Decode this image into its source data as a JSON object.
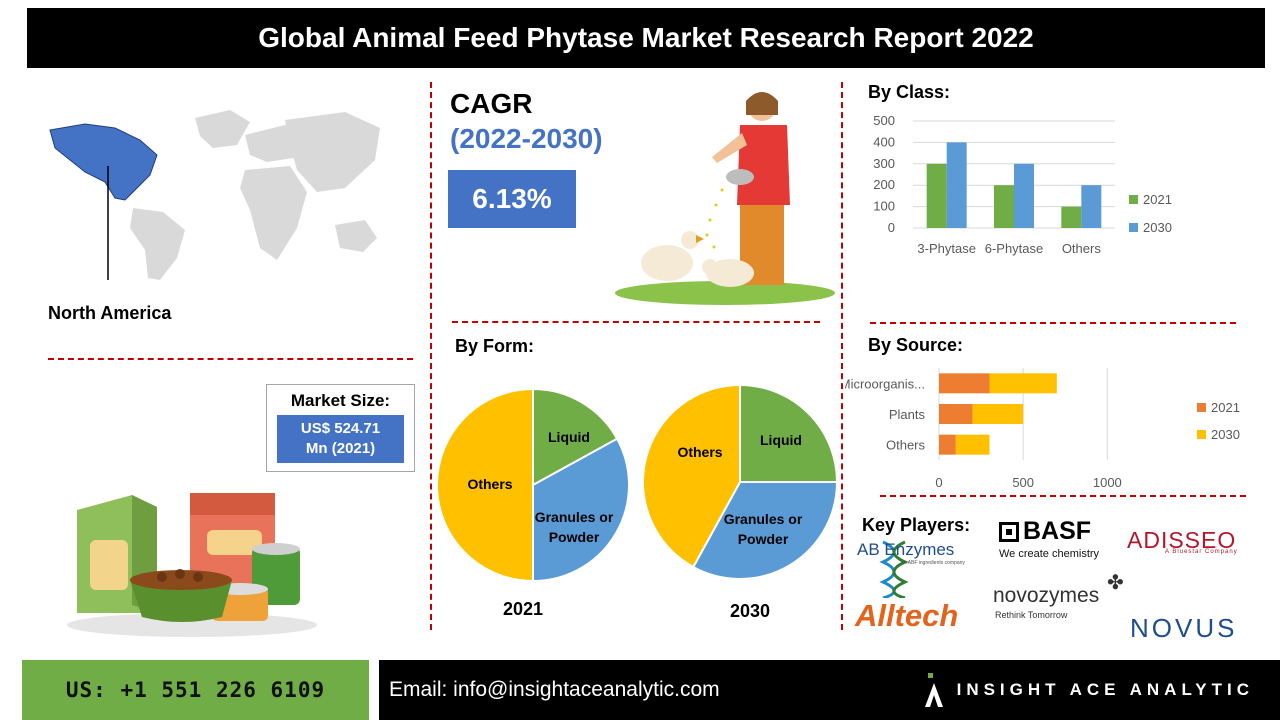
{
  "title": "Global Animal Feed Phytase Market Research Report 2022",
  "region": {
    "label": "North America"
  },
  "market_size": {
    "heading": "Market Size:",
    "value_line1": "US$ 524.71",
    "value_line2": "Mn (2021)"
  },
  "cagr": {
    "label": "CAGR",
    "period": "(2022-2030)",
    "value": "6.13%"
  },
  "by_class": {
    "heading": "By Class:"
  },
  "by_form": {
    "heading": "By Form:"
  },
  "by_source": {
    "heading": "By Source:"
  },
  "key_players": {
    "heading": "Key Players:",
    "companies": [
      {
        "name": "AB Enzymes",
        "tagline": "an ABF ingredients company"
      },
      {
        "name": "BASF",
        "tagline": "We create chemistry"
      },
      {
        "name": "ADISSEO",
        "tagline": "A Bluestar Company"
      },
      {
        "name": "Alltech"
      },
      {
        "name": "novozymes",
        "tagline": "Rethink Tomorrow"
      },
      {
        "name": "NOVUS"
      }
    ]
  },
  "footer": {
    "phone": "US: +1 551 226 6109",
    "email": "Email: info@insightaceanalytic.com",
    "brand": "INSIGHT ACE ANALYTIC"
  },
  "colors": {
    "green": "#70ad47",
    "blue": "#5b9bd5",
    "orange": "#ed7d31",
    "yellow": "#ffc000",
    "accent": "#4472c4",
    "divider": "#c00000"
  },
  "chart_data": [
    {
      "type": "bar",
      "categories": [
        "3-Phytase",
        "6-Phytase",
        "Others"
      ],
      "series": [
        {
          "name": "2021",
          "values": [
            300,
            200,
            100
          ],
          "color": "#70ad47"
        },
        {
          "name": "2030",
          "values": [
            400,
            300,
            200
          ],
          "color": "#5b9bd5"
        }
      ],
      "ylim": [
        0,
        500
      ],
      "yticks": [
        0,
        100,
        200,
        300,
        400,
        500
      ],
      "grid": true,
      "legend": "right"
    },
    {
      "type": "pie",
      "title": "2021",
      "slices": [
        {
          "label": "Liquid",
          "value": 17,
          "color": "#70ad47"
        },
        {
          "label": "Granules or Powder",
          "value": 33,
          "color": "#5b9bd5"
        },
        {
          "label": "Others",
          "value": 50,
          "color": "#ffc000"
        }
      ]
    },
    {
      "type": "pie",
      "title": "2030",
      "slices": [
        {
          "label": "Liquid",
          "value": 25,
          "color": "#70ad47"
        },
        {
          "label": "Granules or Powder",
          "value": 33,
          "color": "#5b9bd5"
        },
        {
          "label": "Others",
          "value": 42,
          "color": "#ffc000"
        }
      ]
    },
    {
      "type": "bar",
      "orientation": "horizontal",
      "stacked": true,
      "categories": [
        "Microorganis...",
        "Plants",
        "Others"
      ],
      "series": [
        {
          "name": "2021",
          "values": [
            300,
            200,
            100
          ],
          "color": "#ed7d31"
        },
        {
          "name": "2030",
          "values": [
            400,
            300,
            200
          ],
          "color": "#ffc000"
        }
      ],
      "xlim": [
        0,
        1200
      ],
      "xticks": [
        0,
        500,
        1000
      ],
      "grid": true,
      "legend": "right"
    }
  ]
}
